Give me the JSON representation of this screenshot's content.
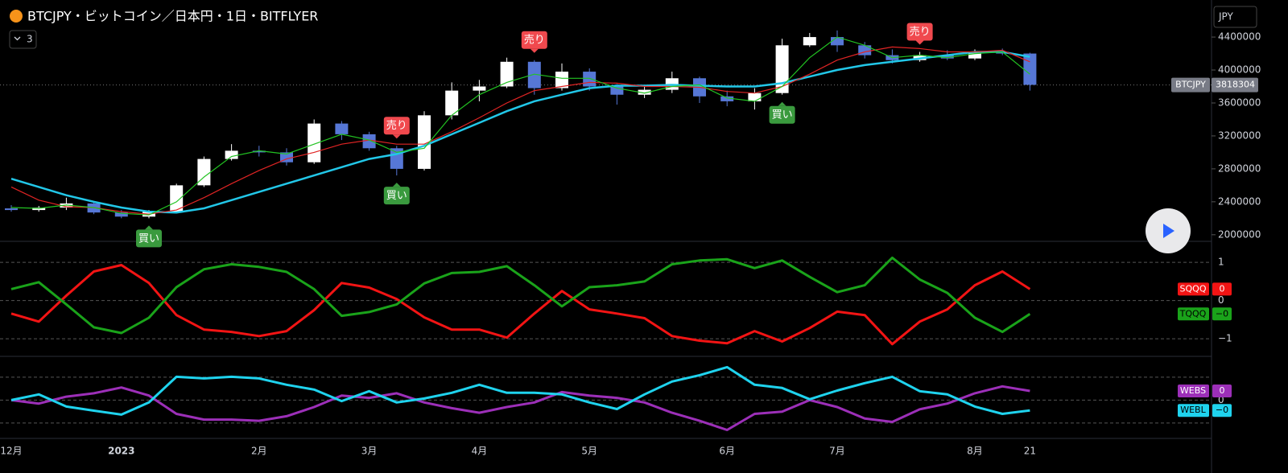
{
  "header": {
    "title": "BTCJPY・ビットコイン／日本円・1日・BITFLYER",
    "indicator_count": 3,
    "currency": "JPY"
  },
  "chart_data": [
    {
      "type": "candlestick",
      "categories": [
        "12月",
        null,
        null,
        null,
        "2023",
        null,
        null,
        null,
        null,
        "2月",
        null,
        null,
        null,
        "3月",
        null,
        null,
        null,
        "4月",
        null,
        null,
        null,
        "5月",
        null,
        null,
        null,
        null,
        "6月",
        null,
        null,
        null,
        "7月",
        null,
        null,
        null,
        null,
        "8月",
        null,
        "21"
      ],
      "open": [
        2320000,
        2300000,
        2330000,
        2380000,
        2270000,
        2220000,
        2280000,
        2600000,
        2920000,
        3020000,
        3000000,
        2880000,
        3350000,
        3220000,
        3050000,
        2800000,
        3450000,
        3750000,
        3800000,
        4100000,
        3780000,
        3980000,
        3800000,
        3700000,
        3760000,
        3900000,
        3680000,
        3620000,
        3720000,
        4300000,
        4400000,
        4300000,
        4180000,
        4120000,
        4180000,
        4140000,
        4220000,
        4200000
      ],
      "high": [
        2360000,
        2350000,
        2450000,
        2400000,
        2300000,
        2300000,
        2620000,
        2950000,
        3100000,
        3080000,
        3050000,
        3400000,
        3380000,
        3250000,
        3080000,
        3500000,
        3850000,
        3880000,
        4150000,
        4120000,
        4080000,
        4020000,
        3830000,
        3800000,
        3980000,
        3920000,
        3750000,
        3780000,
        4380000,
        4450000,
        4480000,
        4340000,
        4250000,
        4220000,
        4240000,
        4250000,
        4260000,
        4210000
      ],
      "low": [
        2280000,
        2280000,
        2300000,
        2250000,
        2200000,
        2200000,
        2270000,
        2580000,
        2900000,
        2950000,
        2840000,
        2860000,
        3150000,
        3020000,
        2720000,
        2780000,
        3400000,
        3620000,
        3780000,
        3700000,
        3750000,
        3750000,
        3580000,
        3660000,
        3720000,
        3600000,
        3560000,
        3520000,
        3700000,
        4280000,
        4220000,
        4140000,
        4080000,
        4100000,
        4120000,
        4120000,
        4180000,
        3750000
      ],
      "close": [
        2300000,
        2330000,
        2380000,
        2270000,
        2220000,
        2280000,
        2600000,
        2920000,
        3020000,
        3000000,
        2880000,
        3350000,
        3220000,
        3050000,
        2800000,
        3450000,
        3750000,
        3800000,
        4100000,
        3780000,
        3980000,
        3800000,
        3700000,
        3760000,
        3900000,
        3680000,
        3620000,
        3720000,
        4300000,
        4400000,
        4300000,
        4180000,
        4120000,
        4180000,
        4140000,
        4220000,
        4200000,
        3820000
      ],
      "up_color": "#ffffff",
      "down_color": "#5677d6",
      "lines": [
        {
          "color": "#22c7e8",
          "values": [
            2680000,
            2580000,
            2480000,
            2400000,
            2330000,
            2280000,
            2270000,
            2320000,
            2420000,
            2520000,
            2620000,
            2720000,
            2820000,
            2920000,
            2980000,
            3080000,
            3220000,
            3360000,
            3500000,
            3620000,
            3700000,
            3780000,
            3810000,
            3810000,
            3820000,
            3810000,
            3800000,
            3800000,
            3840000,
            3920000,
            4000000,
            4060000,
            4100000,
            4140000,
            4180000,
            4220000,
            4220000,
            4160000
          ]
        },
        {
          "color": "#e02424",
          "values": [
            2580000,
            2420000,
            2340000,
            2330000,
            2280000,
            2250000,
            2300000,
            2450000,
            2620000,
            2780000,
            2920000,
            3000000,
            3100000,
            3150000,
            3100000,
            3100000,
            3250000,
            3420000,
            3600000,
            3750000,
            3800000,
            3850000,
            3840000,
            3800000,
            3800000,
            3790000,
            3740000,
            3720000,
            3800000,
            3950000,
            4120000,
            4220000,
            4280000,
            4260000,
            4220000,
            4220000,
            4240000,
            4100000
          ]
        },
        {
          "color": "#22c322",
          "values": [
            2330000,
            2320000,
            2360000,
            2330000,
            2260000,
            2240000,
            2400000,
            2700000,
            2950000,
            3020000,
            2980000,
            3100000,
            3220000,
            3150000,
            3000000,
            3050000,
            3450000,
            3700000,
            3850000,
            3950000,
            3900000,
            3900000,
            3780000,
            3720000,
            3800000,
            3820000,
            3660000,
            3620000,
            3800000,
            4150000,
            4400000,
            4300000,
            4150000,
            4180000,
            4150000,
            4200000,
            4220000,
            3950000
          ]
        }
      ],
      "ylim": [
        1920000,
        4850000
      ],
      "yticks": [
        2000000,
        2400000,
        2800000,
        3200000,
        3600000,
        4000000,
        4400000
      ],
      "last_price": {
        "label": "BTCJPY",
        "value": 3818304
      },
      "annotations": [
        {
          "text": "買い",
          "at": 5,
          "side": "below"
        },
        {
          "text": "売り",
          "at": 14,
          "side": "above"
        },
        {
          "text": "買い",
          "at": 14,
          "side": "below"
        },
        {
          "text": "売り",
          "at": 19,
          "side": "above"
        },
        {
          "text": "買い",
          "at": 28,
          "side": "below"
        },
        {
          "text": "売り",
          "at": 33,
          "side": "above"
        }
      ]
    },
    {
      "type": "line",
      "series": [
        {
          "name": "SQQQ",
          "color": "#f21414",
          "last_value_label": "0",
          "values": [
            -0.34,
            -0.55,
            0.13,
            0.76,
            0.93,
            0.46,
            -0.38,
            -0.76,
            -0.82,
            -0.93,
            -0.8,
            -0.25,
            0.46,
            0.34,
            0.04,
            -0.44,
            -0.76,
            -0.76,
            -0.97,
            -0.34,
            0.25,
            -0.23,
            -0.34,
            -0.46,
            -0.93,
            -1.05,
            -1.12,
            -0.8,
            -1.07,
            -0.72,
            -0.29,
            -0.38,
            -1.14,
            -0.55,
            -0.23,
            0.4,
            0.76,
            0.3
          ]
        },
        {
          "name": "TQQQ",
          "color": "#1aa31a",
          "last_value_label": "−0",
          "values": [
            0.3,
            0.48,
            -0.1,
            -0.7,
            -0.85,
            -0.45,
            0.35,
            0.82,
            0.95,
            0.88,
            0.75,
            0.3,
            -0.4,
            -0.3,
            -0.1,
            0.45,
            0.72,
            0.75,
            0.9,
            0.4,
            -0.15,
            0.35,
            0.4,
            0.5,
            0.95,
            1.05,
            1.08,
            0.85,
            1.05,
            0.62,
            0.22,
            0.4,
            1.12,
            0.55,
            0.2,
            -0.45,
            -0.82,
            -0.35
          ]
        }
      ],
      "ylim": [
        -1.46,
        1.55
      ],
      "yticks": [
        1,
        0,
        {
          "value": -1,
          "label": "−1"
        }
      ]
    },
    {
      "type": "line",
      "series": [
        {
          "name": "WEBS",
          "color": "#9c2fb8",
          "last_value_label": "0",
          "values": [
            0,
            -0.15,
            0.15,
            0.3,
            0.55,
            0.2,
            -0.6,
            -0.85,
            -0.85,
            -0.9,
            -0.7,
            -0.3,
            0.2,
            0.1,
            0.3,
            -0.1,
            -0.35,
            -0.55,
            -0.3,
            -0.1,
            0.35,
            0.2,
            0.1,
            -0.1,
            -0.55,
            -0.9,
            -1.3,
            -0.6,
            -0.5,
            0,
            -0.3,
            -0.8,
            -0.95,
            -0.4,
            -0.15,
            0.3,
            0.6,
            0.4
          ]
        },
        {
          "name": "WEBL",
          "color": "#1fd3ee",
          "last_value_label": "−0",
          "values": [
            0,
            0.25,
            -0.28,
            -0.46,
            -0.63,
            -0.1,
            1.02,
            0.95,
            1.02,
            0.95,
            0.67,
            0.46,
            -0.04,
            0.39,
            -0.1,
            0.07,
            0.32,
            0.67,
            0.32,
            0.32,
            0.25,
            -0.1,
            -0.39,
            0.25,
            0.81,
            1.09,
            1.44,
            0.67,
            0.53,
            0.04,
            0.42,
            0.74,
            1.02,
            0.39,
            0.25,
            -0.28,
            -0.6,
            -0.45
          ]
        }
      ],
      "ylim": [
        -1.67,
        1.91
      ],
      "gridlines": [
        1,
        0,
        -1
      ],
      "yticks": [
        0
      ]
    }
  ]
}
